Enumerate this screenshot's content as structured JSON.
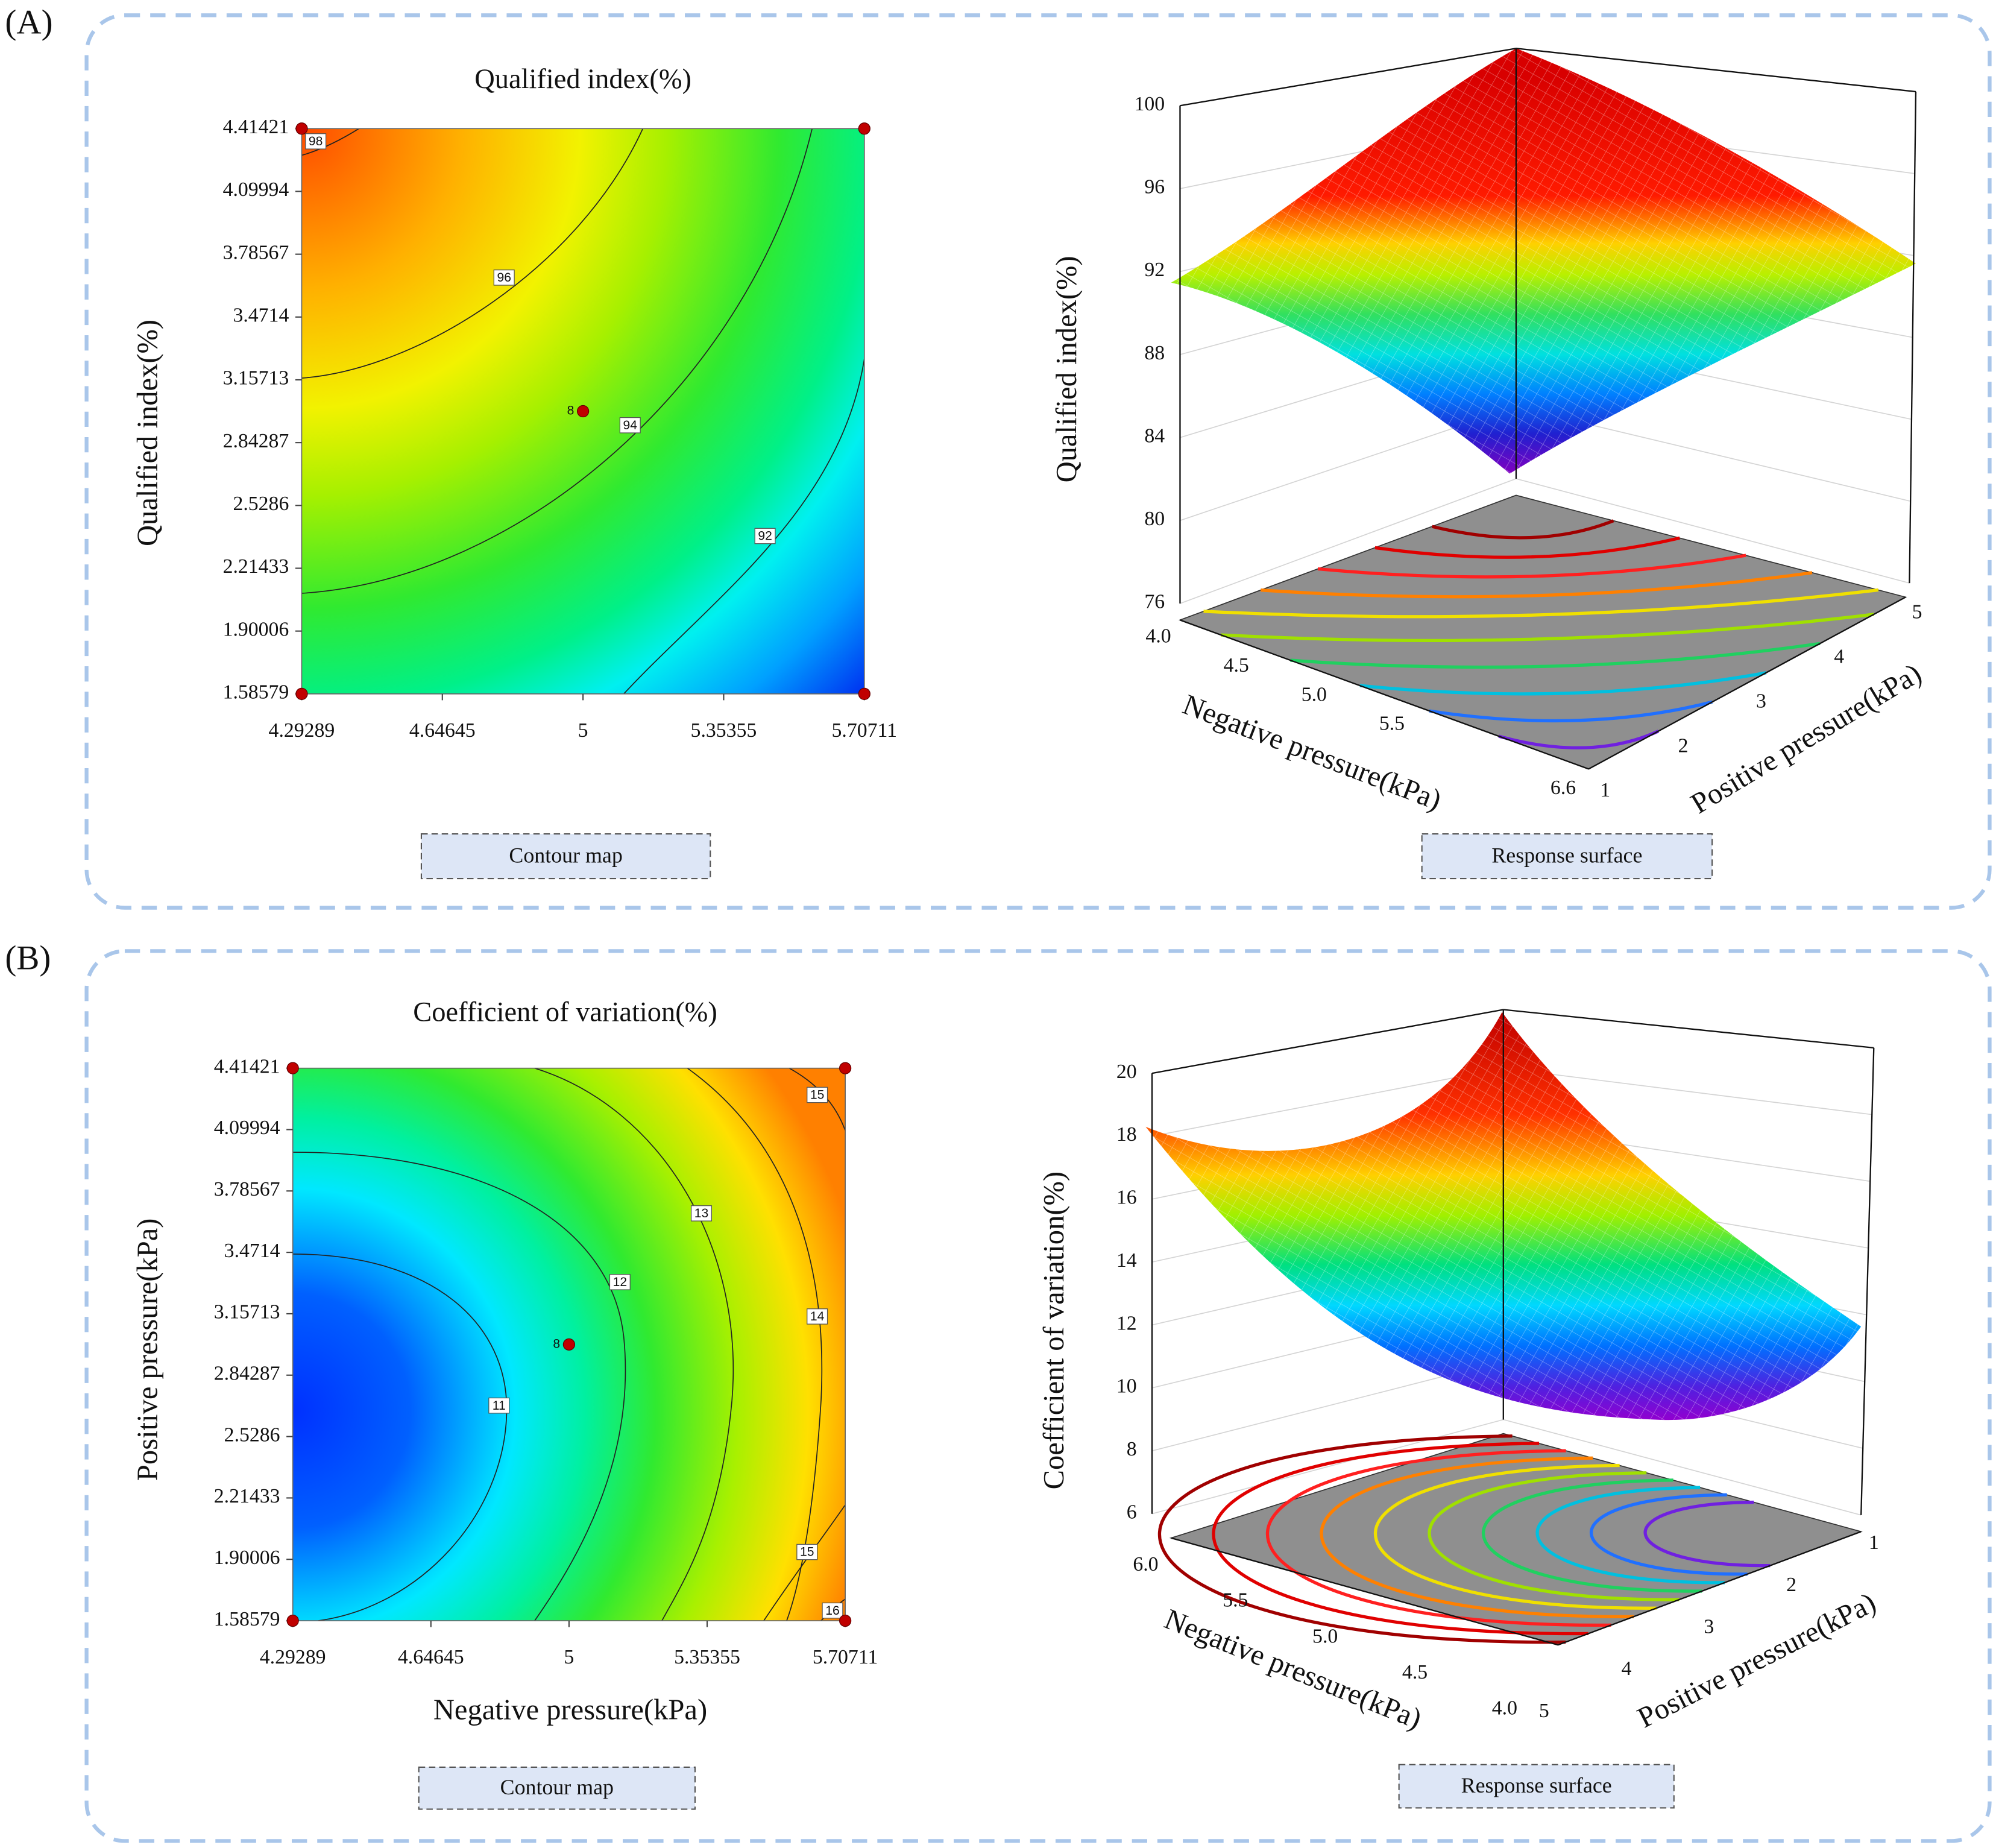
{
  "panel_labels": [
    "(A)",
    "(B)"
  ],
  "chart_data": [
    {
      "type": "contour",
      "title": "Qualified index(%)",
      "ylabel": "Qualified index(%)",
      "caption": "Contour map",
      "xlim": [
        4.29289,
        5.70711
      ],
      "ylim": [
        1.58579,
        4.41421
      ],
      "xticks": [
        4.29289,
        4.64645,
        5,
        5.35355,
        5.70711
      ],
      "yticks": [
        1.58579,
        1.90006,
        2.21433,
        2.5286,
        2.84287,
        3.15713,
        3.4714,
        3.78567,
        4.09994,
        4.41421
      ],
      "contour_levels": [
        98,
        96,
        94,
        92
      ],
      "points": {
        "x": [
          4.29289,
          5.70711,
          4.29289,
          5.70711,
          5
        ],
        "y": [
          4.41421,
          4.41421,
          1.58579,
          1.58579,
          3
        ]
      },
      "center_label": "8",
      "point_color": "#c00000"
    },
    {
      "type": "surface",
      "zlabel": "Qualified index(%)",
      "xlabel": "Negative pressure(kPa)",
      "ylabel": "Positive pressure(kPa)",
      "caption": "Response surface",
      "xlim": [
        4,
        6.6
      ],
      "xticks": [
        {
          "value": 4,
          "label": "4.0"
        },
        4.5,
        {
          "value": 5,
          "label": "5.0"
        },
        5.5,
        6.6
      ],
      "ylim": [
        1,
        5
      ],
      "yticks": [
        1,
        2,
        3,
        4,
        5
      ],
      "zlim": [
        76,
        100
      ],
      "zticks": [
        76,
        80,
        84,
        88,
        92,
        96,
        100
      ]
    },
    {
      "type": "contour",
      "title": "Coefficient of variation(%)",
      "xlabel": "Negative pressure(kPa)",
      "ylabel": "Positive pressure(kPa)",
      "caption": "Contour map",
      "xlim": [
        4.29289,
        5.70711
      ],
      "ylim": [
        1.58579,
        4.41421
      ],
      "xticks": [
        4.29289,
        4.64645,
        5,
        5.35355,
        5.70711
      ],
      "yticks": [
        1.58579,
        1.90006,
        2.21433,
        2.5286,
        2.84287,
        3.15713,
        3.4714,
        3.78567,
        4.09994,
        4.41421
      ],
      "contour_levels": [
        15,
        13,
        12,
        14,
        11,
        15,
        16
      ],
      "points": {
        "x": [
          4.29289,
          5.70711,
          4.29289,
          5.70711,
          5
        ],
        "y": [
          4.41421,
          4.41421,
          1.58579,
          1.58579,
          3
        ]
      },
      "center_label": "8",
      "point_color": "#c00000"
    },
    {
      "type": "surface",
      "zlabel": "Coefficient of variation(%)",
      "xlabel": "Negative pressure(kPa)",
      "ylabel": "Positive pressure(kPa)",
      "caption": "Response surface",
      "xlim": [
        6,
        4
      ],
      "xticks": [
        {
          "value": 6,
          "label": "6.0"
        },
        5.5,
        {
          "value": 5,
          "label": "5.0"
        },
        4.5,
        {
          "value": 4,
          "label": "4.0"
        }
      ],
      "ylim": [
        5,
        1
      ],
      "yticks": [
        5,
        4,
        3,
        2,
        1
      ],
      "zlim": [
        6,
        20
      ],
      "zticks": [
        6,
        8,
        10,
        12,
        14,
        16,
        18,
        20
      ]
    }
  ]
}
